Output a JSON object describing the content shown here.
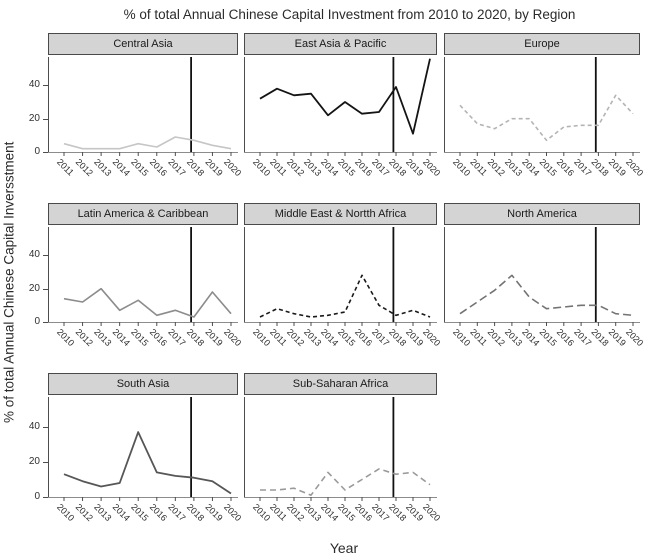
{
  "colors": {
    "background": "#ffffff",
    "strip_fill": "#d4d4d4",
    "strip_border": "#4a4a4a",
    "axis_line": "#8c8c8c",
    "y_axis_line": "#4d4d4d",
    "tick": "#4d4d4d",
    "reference_line": "#111111",
    "text": "#2b2b2b"
  },
  "chart_data": {
    "type": "line",
    "title": "% of total Annual Chinese Capital Investment from 2010 to 2020, by Region",
    "xlabel": "Year",
    "ylabel": "% of total Annual Chinese Capital Inversstment",
    "ylim": [
      0,
      57
    ],
    "yticks": [
      0,
      20,
      40
    ],
    "grid": false,
    "legend": "none",
    "facet_layout": "3 columns x 3 rows, 8 facets",
    "reference_line": {
      "type": "vertical",
      "x_year": 2018,
      "position_note": "drawn just left of the 2018 tick in every facet"
    },
    "facets": [
      {
        "name": "Central Asia",
        "years": [
          2011,
          2012,
          2013,
          2014,
          2015,
          2016,
          2017,
          2018,
          2019,
          2020
        ],
        "values": [
          5,
          2,
          2,
          2,
          5,
          3,
          9,
          7,
          4,
          2
        ],
        "color": "#c6c6c6",
        "dash": "",
        "width": 1.6
      },
      {
        "name": "East Asia & Pacific",
        "years": [
          2010,
          2011,
          2012,
          2013,
          2014,
          2015,
          2016,
          2017,
          2018,
          2019,
          2020
        ],
        "values": [
          32,
          38,
          34,
          35,
          22,
          30,
          23,
          24,
          39,
          11,
          56
        ],
        "color": "#141414",
        "dash": "",
        "width": 1.8
      },
      {
        "name": "Europe",
        "years": [
          2010,
          2011,
          2012,
          2013,
          2014,
          2015,
          2016,
          2017,
          2018,
          2019,
          2020
        ],
        "values": [
          28,
          17,
          14,
          20,
          20,
          7,
          15,
          16,
          16,
          34,
          23
        ],
        "color": "#b4b4b4",
        "dash": "4,3",
        "width": 1.6
      },
      {
        "name": "Latin America & Caribbean",
        "years": [
          2010,
          2012,
          2013,
          2014,
          2015,
          2016,
          2017,
          2018,
          2019,
          2020
        ],
        "values": [
          14,
          12,
          20,
          7,
          13,
          4,
          7,
          3,
          18,
          5
        ],
        "color": "#8c8c8c",
        "dash": "",
        "width": 1.6
      },
      {
        "name": "Middle East & Nortth Africa",
        "years": [
          2010,
          2011,
          2012,
          2013,
          2014,
          2015,
          2016,
          2017,
          2018,
          2019,
          2020
        ],
        "values": [
          3,
          8,
          5,
          3,
          4,
          6,
          28,
          10,
          4,
          7,
          3
        ],
        "color": "#1a1a1a",
        "dash": "4,3",
        "width": 1.6
      },
      {
        "name": "North America",
        "years": [
          2010,
          2011,
          2012,
          2013,
          2014,
          2015,
          2016,
          2017,
          2018,
          2019,
          2020
        ],
        "values": [
          5,
          12,
          19,
          28,
          15,
          8,
          9,
          10,
          10,
          5,
          4
        ],
        "color": "#737373",
        "dash": "8,4",
        "width": 1.6
      },
      {
        "name": "South Asia",
        "years": [
          2010,
          2012,
          2013,
          2014,
          2015,
          2016,
          2017,
          2018,
          2019,
          2020
        ],
        "values": [
          13,
          9,
          6,
          8,
          37,
          14,
          12,
          11,
          9,
          2
        ],
        "color": "#565656",
        "dash": "",
        "width": 1.8
      },
      {
        "name": "Sub-Saharan Africa",
        "years": [
          2010,
          2011,
          2012,
          2013,
          2014,
          2015,
          2016,
          2017,
          2018,
          2019,
          2020
        ],
        "values": [
          4,
          4,
          5,
          1,
          14,
          4,
          10,
          16,
          13,
          14,
          7
        ],
        "color": "#9a9a9a",
        "dash": "6,4",
        "width": 1.6
      }
    ]
  }
}
